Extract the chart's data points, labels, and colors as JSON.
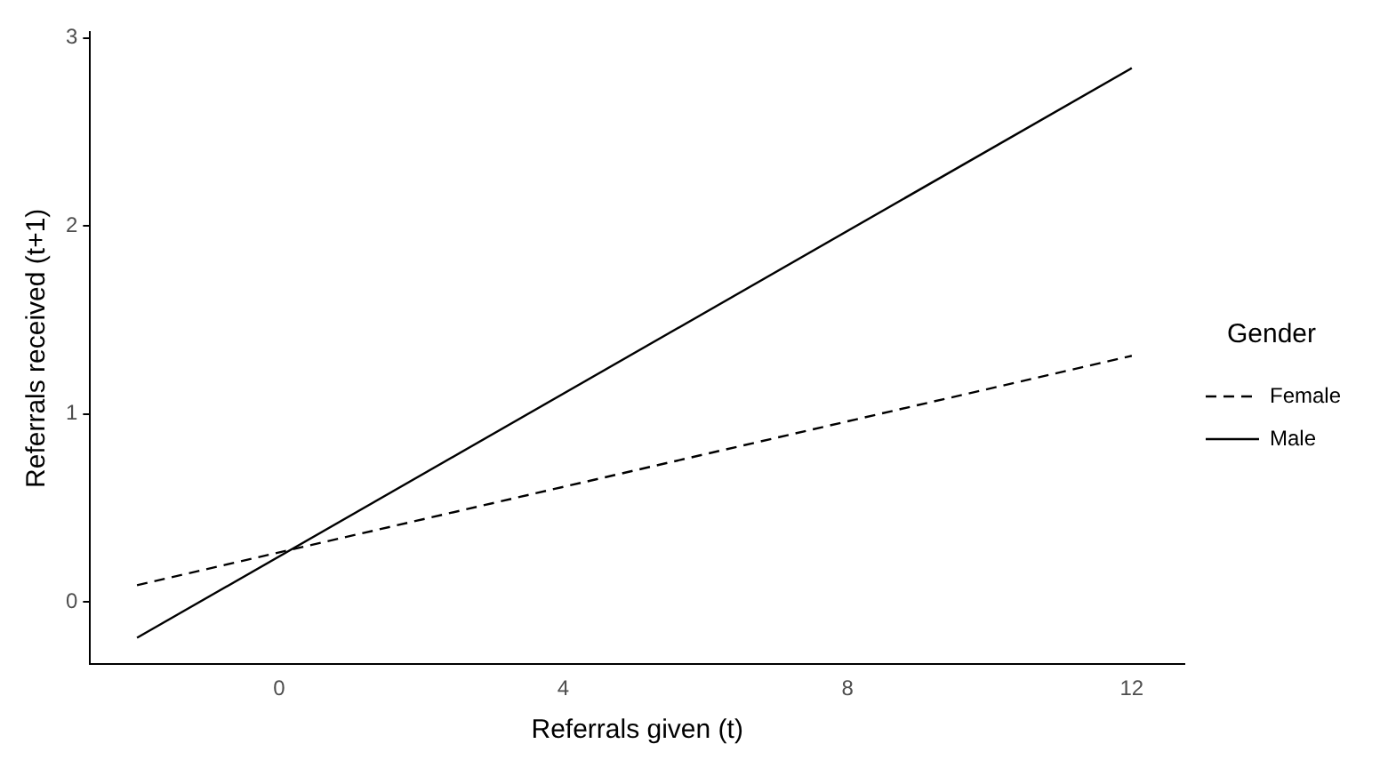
{
  "chart_data": {
    "type": "line",
    "xlabel": "Referrals given (t)",
    "ylabel": "Referrals received (t+1)",
    "legend_title": "Gender",
    "legend": "right",
    "grid": false,
    "marker": "none",
    "xlim": [
      -2.66,
      12.74
    ],
    "xticks": [
      0,
      4,
      8,
      12
    ],
    "ylim": [
      -0.33,
      3.03
    ],
    "yticks": [
      0,
      1,
      2,
      3
    ],
    "x": [
      -2,
      12
    ],
    "series": [
      {
        "name": "Female",
        "color": "#000000",
        "line_style": "dashed",
        "values": [
          0.09,
          1.31
        ]
      },
      {
        "name": "Male",
        "color": "#000000",
        "line_style": "solid",
        "values": [
          -0.19,
          2.84
        ]
      }
    ]
  }
}
